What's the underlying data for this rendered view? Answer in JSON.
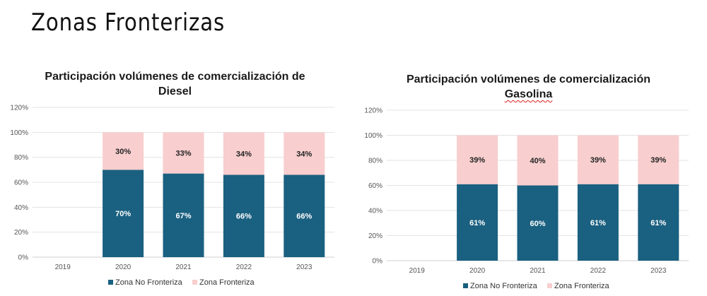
{
  "page_title": "Zonas Fronterizas",
  "colors": {
    "no_fronteriza": "#1a6080",
    "fronteriza": "#f8cece"
  },
  "chart_data": [
    {
      "type": "bar",
      "stacked": true,
      "title_line1": "Participación volúmenes de comercialización de",
      "title_line2": "Diesel",
      "categories": [
        "2019",
        "2020",
        "2021",
        "2022",
        "2023"
      ],
      "series": [
        {
          "name": "Zona No Fronteriza",
          "values": [
            null,
            70,
            67,
            66,
            66
          ],
          "labels": [
            "",
            "70%",
            "67%",
            "66%",
            "66%"
          ]
        },
        {
          "name": "Zona Fronteriza",
          "values": [
            null,
            30,
            33,
            34,
            34
          ],
          "labels": [
            "",
            "30%",
            "33%",
            "34%",
            "34%"
          ]
        }
      ],
      "yticks": [
        "0%",
        "20%",
        "40%",
        "60%",
        "80%",
        "100%",
        "120%"
      ],
      "ylim": [
        0,
        120
      ],
      "legend": "bottom"
    },
    {
      "type": "bar",
      "stacked": true,
      "title_line1": "Participación volúmenes de comercialización",
      "title_line2": "Gasolina",
      "categories": [
        "2019",
        "2020",
        "2021",
        "2022",
        "2023"
      ],
      "series": [
        {
          "name": "Zona No Fronteriza",
          "values": [
            null,
            61,
            60,
            61,
            61
          ],
          "labels": [
            "",
            "61%",
            "60%",
            "61%",
            "61%"
          ]
        },
        {
          "name": "Zona Fronteriza",
          "values": [
            null,
            39,
            40,
            39,
            39
          ],
          "labels": [
            "",
            "39%",
            "40%",
            "39%",
            "39%"
          ]
        }
      ],
      "yticks": [
        "0%",
        "20%",
        "40%",
        "60%",
        "80%",
        "100%",
        "120%"
      ],
      "ylim": [
        0,
        120
      ],
      "legend": "bottom"
    }
  ]
}
